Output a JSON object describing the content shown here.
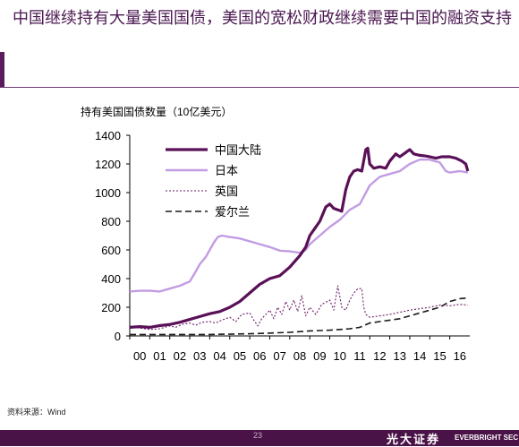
{
  "slide": {
    "title": "中国继续持有大量美国国债，美国的宽松财政继续需要中国的融资支持",
    "source": "资料来源：Wind",
    "page_number": "23",
    "brand_cn": "光大证券",
    "brand_en": "EVERBRIGHT SEC"
  },
  "chart_data": {
    "type": "line",
    "title": "持有美国国债数量（10亿美元）",
    "xlabel": "",
    "ylabel": "",
    "ylim": [
      0,
      1400
    ],
    "yticks": [
      0,
      200,
      400,
      600,
      800,
      1000,
      1200,
      1400
    ],
    "xlim": [
      2000.0,
      2017.0
    ],
    "x_tick_labels": [
      "00",
      "01",
      "02",
      "03",
      "04",
      "05",
      "06",
      "07",
      "08",
      "09",
      "10",
      "11",
      "12",
      "13",
      "14",
      "15",
      "16"
    ],
    "grid": false,
    "legend": "top-left",
    "series": [
      {
        "name": "中国大陆",
        "color": "#5a1057",
        "style": "solid-thick",
        "points": [
          [
            2000.0,
            60
          ],
          [
            2000.5,
            65
          ],
          [
            2001.0,
            60
          ],
          [
            2001.5,
            72
          ],
          [
            2002.0,
            80
          ],
          [
            2002.5,
            95
          ],
          [
            2003.0,
            115
          ],
          [
            2003.5,
            135
          ],
          [
            2004.0,
            155
          ],
          [
            2004.5,
            170
          ],
          [
            2005.0,
            200
          ],
          [
            2005.5,
            240
          ],
          [
            2006.0,
            300
          ],
          [
            2006.5,
            360
          ],
          [
            2007.0,
            400
          ],
          [
            2007.5,
            420
          ],
          [
            2008.0,
            480
          ],
          [
            2008.5,
            560
          ],
          [
            2008.8,
            620
          ],
          [
            2009.0,
            700
          ],
          [
            2009.3,
            760
          ],
          [
            2009.5,
            800
          ],
          [
            2009.8,
            900
          ],
          [
            2010.0,
            920
          ],
          [
            2010.2,
            890
          ],
          [
            2010.4,
            880
          ],
          [
            2010.6,
            870
          ],
          [
            2010.8,
            1020
          ],
          [
            2011.0,
            1110
          ],
          [
            2011.2,
            1150
          ],
          [
            2011.4,
            1160
          ],
          [
            2011.6,
            1150
          ],
          [
            2011.8,
            1300
          ],
          [
            2011.9,
            1310
          ],
          [
            2012.0,
            1200
          ],
          [
            2012.2,
            1170
          ],
          [
            2012.5,
            1180
          ],
          [
            2012.8,
            1170
          ],
          [
            2013.0,
            1220
          ],
          [
            2013.3,
            1270
          ],
          [
            2013.5,
            1250
          ],
          [
            2013.8,
            1280
          ],
          [
            2014.0,
            1300
          ],
          [
            2014.2,
            1270
          ],
          [
            2014.5,
            1260
          ],
          [
            2014.8,
            1255
          ],
          [
            2015.0,
            1250
          ],
          [
            2015.3,
            1240
          ],
          [
            2015.6,
            1250
          ],
          [
            2016.0,
            1250
          ],
          [
            2016.3,
            1240
          ],
          [
            2016.6,
            1220
          ],
          [
            2016.8,
            1200
          ],
          [
            2016.9,
            1150
          ]
        ]
      },
      {
        "name": "日本",
        "color": "#c29ce3",
        "style": "solid",
        "points": [
          [
            2000.0,
            310
          ],
          [
            2000.5,
            315
          ],
          [
            2001.0,
            315
          ],
          [
            2001.5,
            310
          ],
          [
            2002.0,
            330
          ],
          [
            2002.5,
            350
          ],
          [
            2003.0,
            380
          ],
          [
            2003.3,
            450
          ],
          [
            2003.5,
            500
          ],
          [
            2003.8,
            550
          ],
          [
            2004.0,
            600
          ],
          [
            2004.2,
            650
          ],
          [
            2004.4,
            690
          ],
          [
            2004.6,
            700
          ],
          [
            2005.0,
            690
          ],
          [
            2005.5,
            680
          ],
          [
            2006.0,
            660
          ],
          [
            2006.5,
            640
          ],
          [
            2007.0,
            620
          ],
          [
            2007.5,
            595
          ],
          [
            2008.0,
            590
          ],
          [
            2008.5,
            580
          ],
          [
            2008.8,
            600
          ],
          [
            2009.0,
            640
          ],
          [
            2009.5,
            700
          ],
          [
            2010.0,
            760
          ],
          [
            2010.5,
            810
          ],
          [
            2011.0,
            880
          ],
          [
            2011.5,
            920
          ],
          [
            2012.0,
            1050
          ],
          [
            2012.5,
            1110
          ],
          [
            2013.0,
            1130
          ],
          [
            2013.5,
            1150
          ],
          [
            2014.0,
            1200
          ],
          [
            2014.5,
            1230
          ],
          [
            2015.0,
            1230
          ],
          [
            2015.5,
            1210
          ],
          [
            2015.8,
            1150
          ],
          [
            2016.0,
            1140
          ],
          [
            2016.5,
            1150
          ],
          [
            2016.9,
            1140
          ]
        ]
      },
      {
        "name": "英国",
        "color": "#6a1a66",
        "style": "dotted",
        "points": [
          [
            2000.0,
            60
          ],
          [
            2000.5,
            55
          ],
          [
            2001.0,
            45
          ],
          [
            2001.5,
            50
          ],
          [
            2002.0,
            70
          ],
          [
            2002.3,
            60
          ],
          [
            2002.6,
            80
          ],
          [
            2003.0,
            90
          ],
          [
            2003.3,
            75
          ],
          [
            2003.6,
            95
          ],
          [
            2004.0,
            100
          ],
          [
            2004.3,
            90
          ],
          [
            2004.6,
            110
          ],
          [
            2005.0,
            130
          ],
          [
            2005.3,
            100
          ],
          [
            2005.6,
            150
          ],
          [
            2006.0,
            160
          ],
          [
            2006.2,
            110
          ],
          [
            2006.4,
            70
          ],
          [
            2006.6,
            120
          ],
          [
            2006.8,
            150
          ],
          [
            2007.0,
            180
          ],
          [
            2007.2,
            120
          ],
          [
            2007.4,
            200
          ],
          [
            2007.6,
            150
          ],
          [
            2007.8,
            240
          ],
          [
            2008.0,
            180
          ],
          [
            2008.2,
            250
          ],
          [
            2008.4,
            170
          ],
          [
            2008.6,
            280
          ],
          [
            2008.8,
            140
          ],
          [
            2009.0,
            200
          ],
          [
            2009.3,
            150
          ],
          [
            2009.6,
            220
          ],
          [
            2010.0,
            250
          ],
          [
            2010.2,
            180
          ],
          [
            2010.4,
            350
          ],
          [
            2010.6,
            200
          ],
          [
            2010.8,
            180
          ],
          [
            2011.0,
            250
          ],
          [
            2011.2,
            300
          ],
          [
            2011.4,
            330
          ],
          [
            2011.6,
            330
          ],
          [
            2011.7,
            200
          ],
          [
            2011.8,
            150
          ],
          [
            2012.0,
            130
          ],
          [
            2012.5,
            140
          ],
          [
            2013.0,
            150
          ],
          [
            2013.5,
            165
          ],
          [
            2014.0,
            180
          ],
          [
            2014.5,
            190
          ],
          [
            2015.0,
            200
          ],
          [
            2015.5,
            215
          ],
          [
            2016.0,
            210
          ],
          [
            2016.5,
            220
          ],
          [
            2016.9,
            215
          ]
        ]
      },
      {
        "name": "爱尔兰",
        "color": "#1a1a1a",
        "style": "dashed",
        "points": [
          [
            2000.0,
            10
          ],
          [
            2002.0,
            10
          ],
          [
            2004.0,
            10
          ],
          [
            2006.0,
            15
          ],
          [
            2008.0,
            25
          ],
          [
            2009.0,
            35
          ],
          [
            2010.0,
            40
          ],
          [
            2010.5,
            45
          ],
          [
            2011.0,
            50
          ],
          [
            2011.5,
            60
          ],
          [
            2012.0,
            90
          ],
          [
            2012.5,
            100
          ],
          [
            2013.0,
            110
          ],
          [
            2013.5,
            120
          ],
          [
            2014.0,
            140
          ],
          [
            2014.5,
            160
          ],
          [
            2015.0,
            180
          ],
          [
            2015.5,
            200
          ],
          [
            2016.0,
            240
          ],
          [
            2016.5,
            260
          ],
          [
            2016.9,
            265
          ]
        ]
      }
    ]
  }
}
